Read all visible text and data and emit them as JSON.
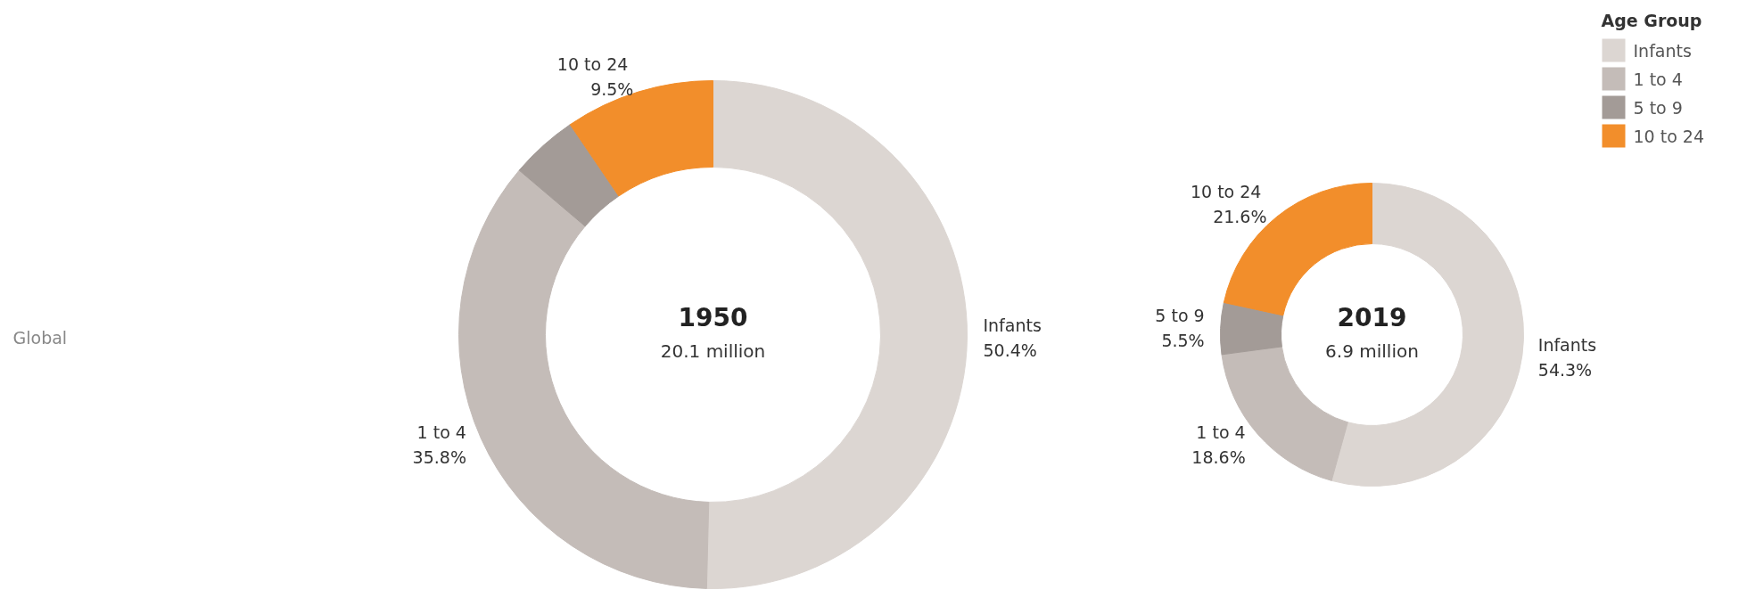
{
  "chart_data": [
    {
      "type": "donut",
      "title": "1950",
      "subtitle": "20.1 million",
      "annotations": [
        "Global"
      ],
      "categories": [
        "Infants",
        "1 to 4",
        null,
        "10 to  24"
      ],
      "values": [
        50.4,
        35.8,
        4.3,
        9.5
      ],
      "colors": [
        "#dcd6d2",
        "#c4bcb8",
        "#a39b97",
        "#f28e2b"
      ],
      "value_labels": [
        "50.4%",
        "35.8%",
        null,
        "9.5%"
      ]
    },
    {
      "type": "donut",
      "title": "2019",
      "subtitle": "6.9 million",
      "legend": "top right",
      "legend_title": "Age Group",
      "categories": [
        "Infants",
        "1 to 4",
        "5 to 9",
        "10 to  24"
      ],
      "values": [
        54.3,
        18.6,
        5.5,
        21.6
      ],
      "colors": [
        "#dcd6d2",
        "#c4bcb8",
        "#a39b97",
        "#f28e2b"
      ],
      "value_labels": [
        "54.3%",
        "18.6%",
        "5.5%",
        "21.6%"
      ]
    }
  ]
}
